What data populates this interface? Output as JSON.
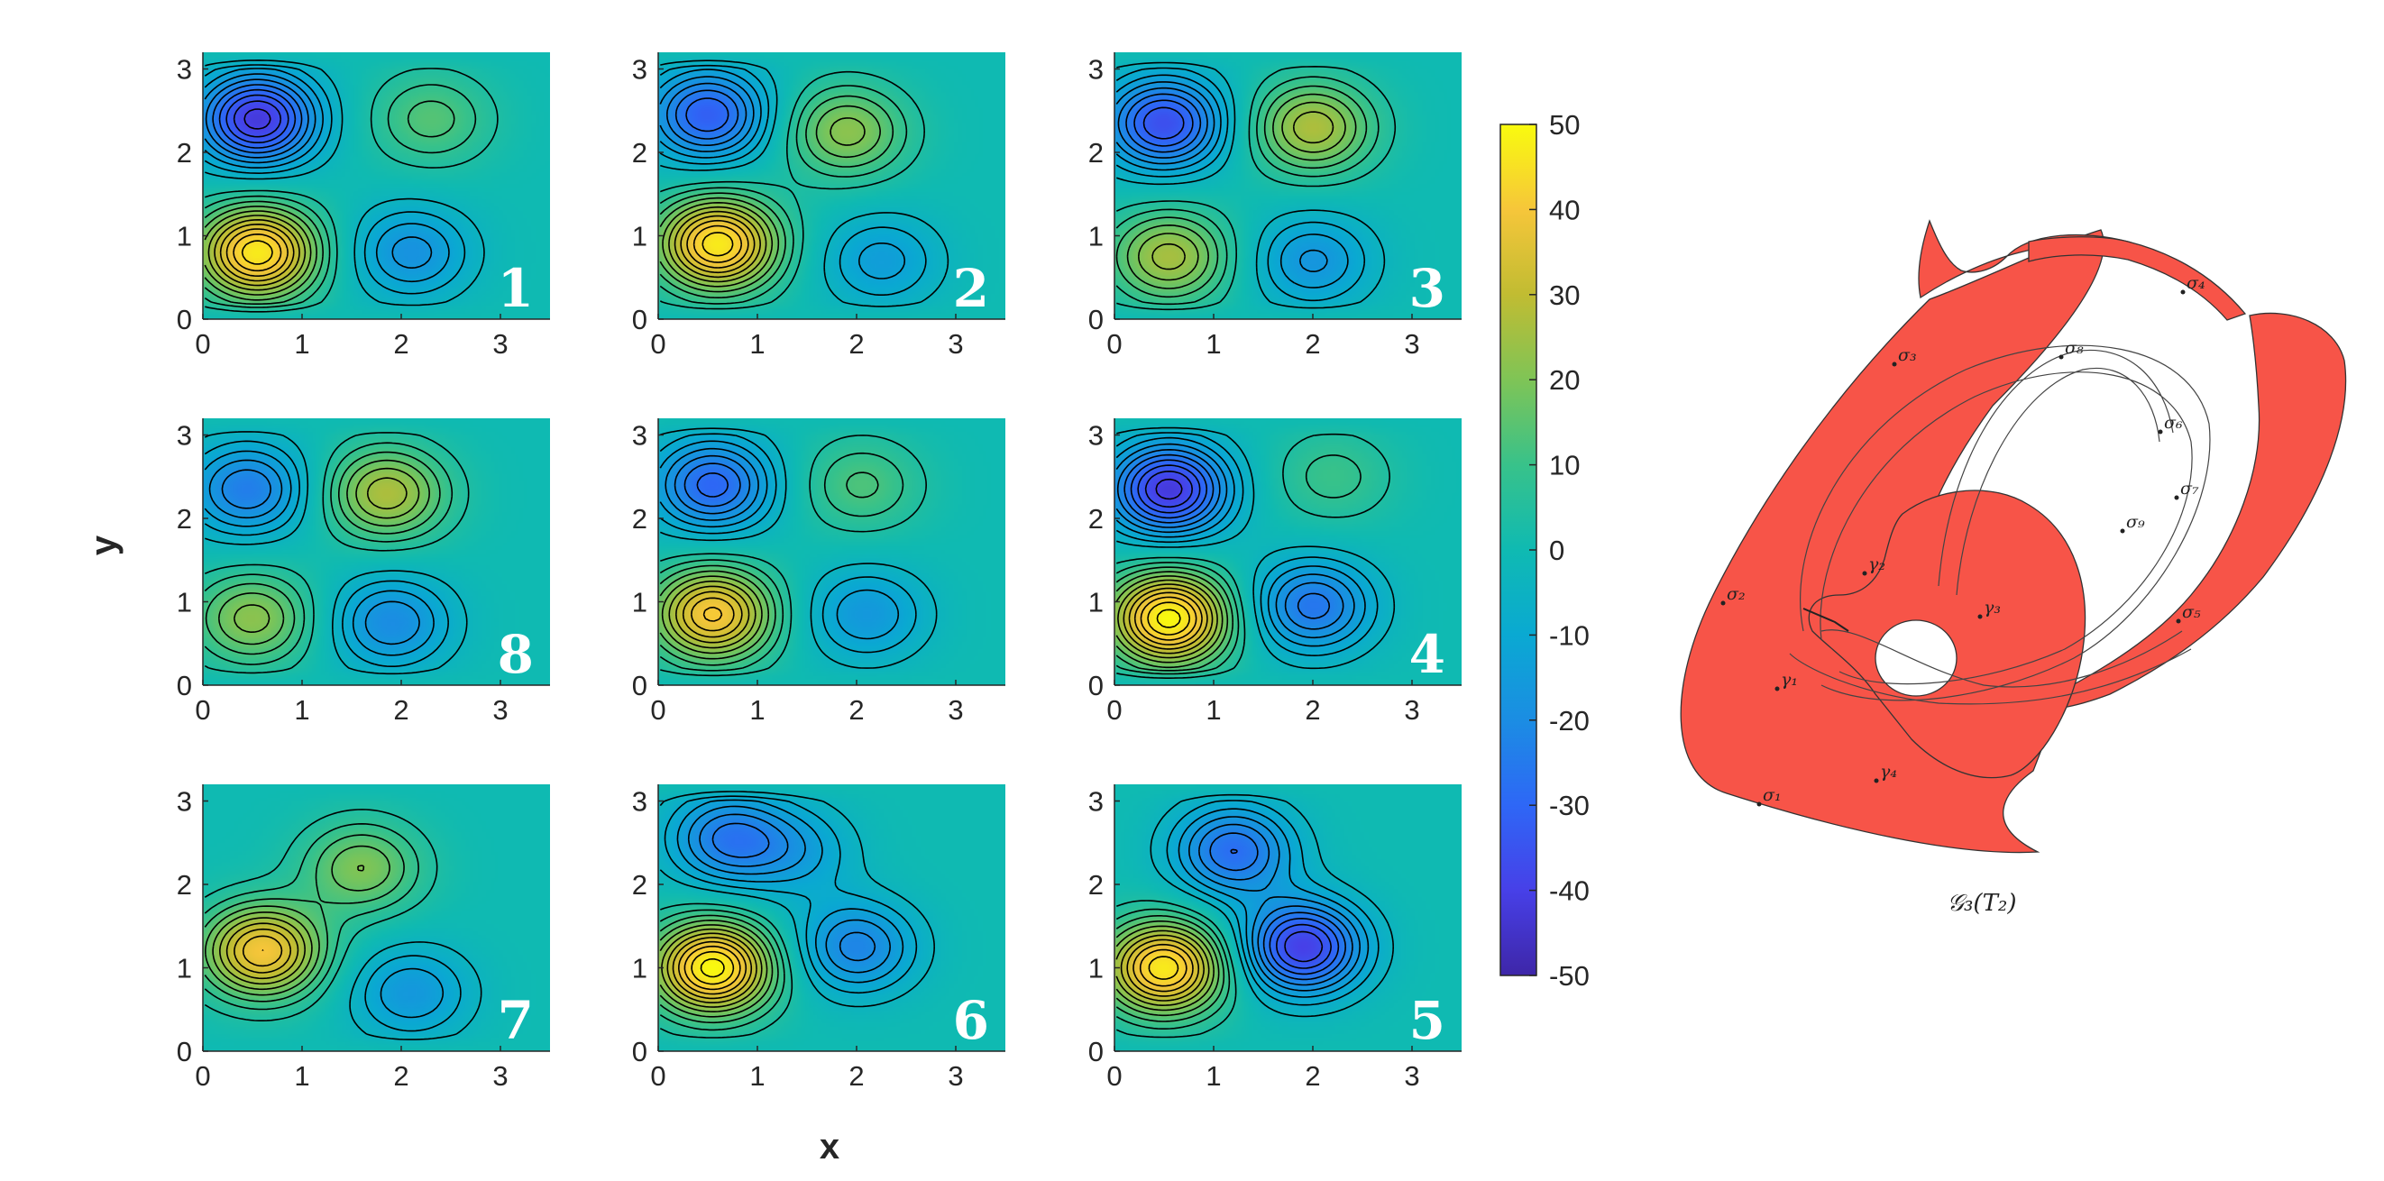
{
  "chart_data": {
    "type": "heatmap",
    "xlabel": "x",
    "ylabel": "y",
    "xlim": [
      0,
      3.5
    ],
    "ylim": [
      0,
      3.2
    ],
    "xticks": [
      "0",
      "1",
      "2",
      "3"
    ],
    "yticks": [
      "0",
      "1",
      "2",
      "3"
    ],
    "colorbar": {
      "min": -50,
      "max": 50,
      "ticks": [
        "50",
        "40",
        "30",
        "20",
        "10",
        "0",
        "-10",
        "-20",
        "-30",
        "-40",
        "-50"
      ],
      "colormap": "parula"
    },
    "contour_lines": "black",
    "grid": false,
    "panels": [
      {
        "label": "1",
        "row": 0,
        "col": 0,
        "extrema": [
          {
            "x": 0.55,
            "y": 2.4,
            "v": -42
          },
          {
            "x": 0.55,
            "y": 0.8,
            "v": 47
          },
          {
            "x": 2.3,
            "y": 2.4,
            "v": 14
          },
          {
            "x": 2.1,
            "y": 0.8,
            "v": -18
          }
        ]
      },
      {
        "label": "2",
        "row": 0,
        "col": 1,
        "extrema": [
          {
            "x": 0.5,
            "y": 2.45,
            "v": -32
          },
          {
            "x": 0.6,
            "y": 0.9,
            "v": 47
          },
          {
            "x": 1.9,
            "y": 2.25,
            "v": 22
          },
          {
            "x": 2.25,
            "y": 0.7,
            "v": -14
          }
        ]
      },
      {
        "label": "3",
        "row": 0,
        "col": 2,
        "extrema": [
          {
            "x": 0.5,
            "y": 2.35,
            "v": -36
          },
          {
            "x": 0.55,
            "y": 0.75,
            "v": 26
          },
          {
            "x": 2.0,
            "y": 2.3,
            "v": 27
          },
          {
            "x": 2.0,
            "y": 0.7,
            "v": -17
          }
        ]
      },
      {
        "label": "8",
        "row": 1,
        "col": 0,
        "extrema": [
          {
            "x": 0.45,
            "y": 2.35,
            "v": -24
          },
          {
            "x": 0.5,
            "y": 0.8,
            "v": 22
          },
          {
            "x": 1.85,
            "y": 2.3,
            "v": 27
          },
          {
            "x": 1.9,
            "y": 0.75,
            "v": -20
          }
        ]
      },
      {
        "label": "",
        "row": 1,
        "col": 1,
        "extrema": [
          {
            "x": 0.55,
            "y": 2.4,
            "v": -30
          },
          {
            "x": 0.55,
            "y": 0.85,
            "v": 41
          },
          {
            "x": 2.05,
            "y": 2.4,
            "v": 13
          },
          {
            "x": 2.1,
            "y": 0.85,
            "v": -16
          }
        ]
      },
      {
        "label": "4",
        "row": 1,
        "col": 2,
        "extrema": [
          {
            "x": 0.55,
            "y": 2.35,
            "v": -42
          },
          {
            "x": 0.55,
            "y": 0.8,
            "v": 50
          },
          {
            "x": 2.2,
            "y": 2.5,
            "v": 10
          },
          {
            "x": 2.0,
            "y": 0.95,
            "v": -26
          }
        ]
      },
      {
        "label": "7",
        "row": 2,
        "col": 0,
        "extrema": [
          {
            "x": 0.6,
            "y": 1.2,
            "v": 40
          },
          {
            "x": 1.6,
            "y": 2.2,
            "v": 20
          },
          {
            "x": 2.1,
            "y": 0.7,
            "v": -16
          },
          {
            "x": 1.5,
            "y": 2.9,
            "v": 0
          }
        ]
      },
      {
        "label": "6",
        "row": 2,
        "col": 1,
        "extrema": [
          {
            "x": 0.55,
            "y": 1.0,
            "v": 50
          },
          {
            "x": 0.7,
            "y": 2.55,
            "v": -24
          },
          {
            "x": 2.0,
            "y": 1.25,
            "v": -22
          },
          {
            "x": 1.4,
            "y": 2.4,
            "v": -12
          }
        ]
      },
      {
        "label": "5",
        "row": 2,
        "col": 2,
        "extrema": [
          {
            "x": 0.5,
            "y": 1.0,
            "v": 47
          },
          {
            "x": 1.9,
            "y": 1.25,
            "v": -40
          },
          {
            "x": 1.2,
            "y": 2.4,
            "v": -28
          }
        ]
      }
    ]
  },
  "diagram": {
    "caption": "𝒢₃(T₂)",
    "labels": [
      "σ₁",
      "σ₂",
      "σ₃",
      "σ₄",
      "σ₅",
      "σ₆",
      "σ₇",
      "σ₈",
      "σ₉",
      "γ₁",
      "γ₂",
      "γ₃",
      "γ₄"
    ],
    "fill_color": "#f75448"
  }
}
